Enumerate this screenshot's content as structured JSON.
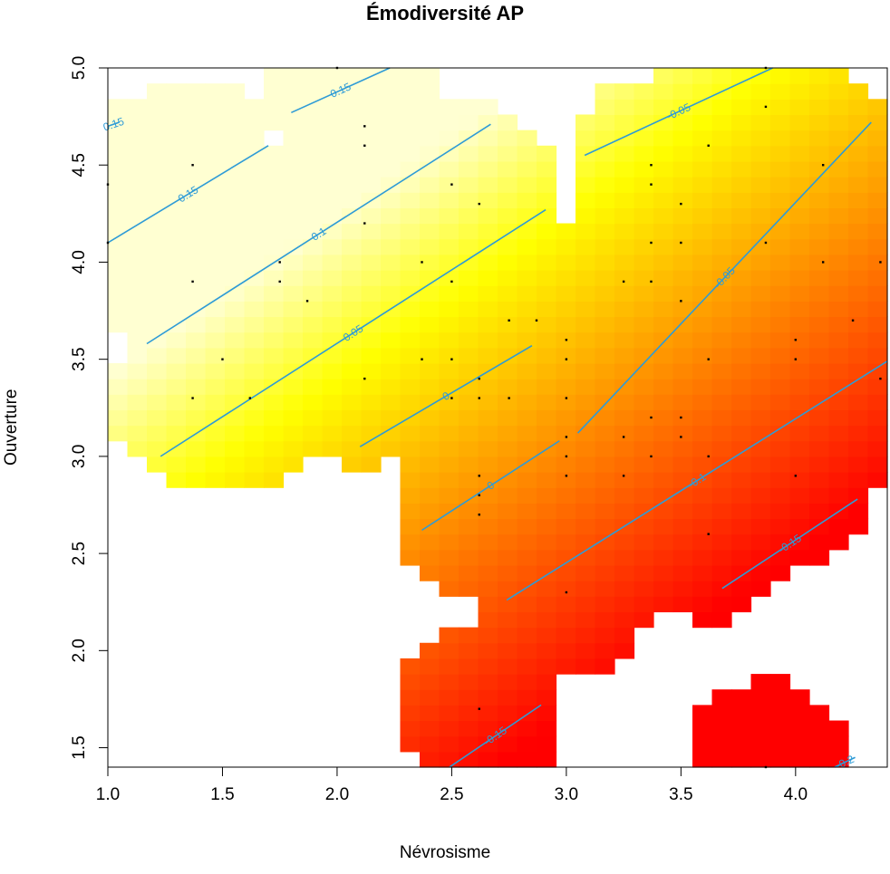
{
  "chart_data": {
    "type": "heatmap",
    "title": "Émodiversité AP",
    "xlabel": "Névrosisme",
    "ylabel": "Ouverture",
    "xlim": [
      1.0,
      4.4
    ],
    "ylim": [
      1.4,
      5.0
    ],
    "x_ticks": [
      "1.0",
      "1.5",
      "2.0",
      "2.5",
      "3.0",
      "3.5",
      "4.0"
    ],
    "y_ticks": [
      "1.5",
      "2.0",
      "2.5",
      "3.0",
      "3.5",
      "4.0",
      "4.5",
      "5.0"
    ],
    "color_scale": {
      "high": "#FFFFD0",
      "mid": "#FFFF00",
      "low": "#FF0000",
      "range": [
        -0.2,
        0.2
      ]
    },
    "contour_color": "#2E9BD6",
    "surface": {
      "intercept": -0.1,
      "slope_x": -0.0974,
      "slope_y": 0.1164
    },
    "contours": [
      {
        "label": "0.15",
        "value": 0.15,
        "segments": [
          [
            [
              1.0,
              4.1
            ],
            [
              1.7,
              4.6
            ]
          ],
          [
            [
              1.0,
              4.7
            ],
            [
              1.05,
              4.72
            ]
          ],
          [
            [
              1.8,
              4.77
            ],
            [
              2.23,
              5.0
            ]
          ]
        ]
      },
      {
        "label": "0.1",
        "value": 0.1,
        "segments": [
          [
            [
              1.17,
              3.58
            ],
            [
              2.67,
              4.71
            ]
          ]
        ]
      },
      {
        "label": "0.05",
        "value": 0.05,
        "segments": [
          [
            [
              1.23,
              3.0
            ],
            [
              2.91,
              4.27
            ]
          ]
        ]
      },
      {
        "label": "0",
        "value": 0.0,
        "segments": [
          [
            [
              2.1,
              3.05
            ],
            [
              2.85,
              3.57
            ]
          ]
        ]
      },
      {
        "label": "0",
        "value": 0.0,
        "segments": [
          [
            [
              2.37,
              2.62
            ],
            [
              2.97,
              3.08
            ]
          ]
        ]
      },
      {
        "label": "-0.05",
        "value": -0.05,
        "segments": [
          [
            [
              3.08,
              4.55
            ],
            [
              3.9,
              5.0
            ]
          ]
        ]
      },
      {
        "label": "-0.05",
        "value": -0.05,
        "segments": [
          [
            [
              3.05,
              3.12
            ],
            [
              4.33,
              4.72
            ]
          ]
        ]
      },
      {
        "label": "-0.1",
        "value": -0.1,
        "segments": [
          [
            [
              2.74,
              2.26
            ],
            [
              4.4,
              3.49
            ]
          ]
        ]
      },
      {
        "label": "-0.15",
        "value": -0.15,
        "segments": [
          [
            [
              3.68,
              2.32
            ],
            [
              4.27,
              2.78
            ]
          ]
        ]
      },
      {
        "label": "-0.15",
        "value": -0.15,
        "segments": [
          [
            [
              2.49,
              1.4
            ],
            [
              2.89,
              1.72
            ]
          ]
        ]
      },
      {
        "label": "-0.2",
        "value": -0.2,
        "segments": [
          [
            [
              4.17,
              1.4
            ],
            [
              4.26,
              1.45
            ]
          ]
        ]
      }
    ],
    "points": [
      [
        1.0,
        4.4
      ],
      [
        1.0,
        4.1
      ],
      [
        1.37,
        4.5
      ],
      [
        1.37,
        3.9
      ],
      [
        1.37,
        3.3
      ],
      [
        1.5,
        3.5
      ],
      [
        1.62,
        3.3
      ],
      [
        1.75,
        4.0
      ],
      [
        1.75,
        3.9
      ],
      [
        1.87,
        3.8
      ],
      [
        2.0,
        5.0
      ],
      [
        2.12,
        4.7
      ],
      [
        2.12,
        4.6
      ],
      [
        2.12,
        4.2
      ],
      [
        2.12,
        3.4
      ],
      [
        2.37,
        4.0
      ],
      [
        2.37,
        3.5
      ],
      [
        2.5,
        4.4
      ],
      [
        2.5,
        3.9
      ],
      [
        2.5,
        3.5
      ],
      [
        2.5,
        3.3
      ],
      [
        2.62,
        4.3
      ],
      [
        2.62,
        3.4
      ],
      [
        2.62,
        3.3
      ],
      [
        2.62,
        2.9
      ],
      [
        2.62,
        2.8
      ],
      [
        2.62,
        2.7
      ],
      [
        2.62,
        1.7
      ],
      [
        2.75,
        3.7
      ],
      [
        2.75,
        3.3
      ],
      [
        2.87,
        3.7
      ],
      [
        3.0,
        3.6
      ],
      [
        3.0,
        3.5
      ],
      [
        3.0,
        3.3
      ],
      [
        3.0,
        3.1
      ],
      [
        3.0,
        3.0
      ],
      [
        3.0,
        2.9
      ],
      [
        3.0,
        2.3
      ],
      [
        3.25,
        3.9
      ],
      [
        3.25,
        3.1
      ],
      [
        3.25,
        2.9
      ],
      [
        3.37,
        4.5
      ],
      [
        3.37,
        4.4
      ],
      [
        3.37,
        4.1
      ],
      [
        3.37,
        3.9
      ],
      [
        3.37,
        3.2
      ],
      [
        3.37,
        3.0
      ],
      [
        3.5,
        4.3
      ],
      [
        3.5,
        4.1
      ],
      [
        3.5,
        3.8
      ],
      [
        3.5,
        3.2
      ],
      [
        3.5,
        3.1
      ],
      [
        3.62,
        4.6
      ],
      [
        3.62,
        3.5
      ],
      [
        3.62,
        3.0
      ],
      [
        3.62,
        2.6
      ],
      [
        3.87,
        5.0
      ],
      [
        3.87,
        4.8
      ],
      [
        3.87,
        4.1
      ],
      [
        4.0,
        3.6
      ],
      [
        4.0,
        3.5
      ],
      [
        4.0,
        2.9
      ],
      [
        4.12,
        4.5
      ],
      [
        4.12,
        4.0
      ],
      [
        4.25,
        3.7
      ],
      [
        4.37,
        4.0
      ],
      [
        4.37,
        3.4
      ],
      [
        3.87,
        1.4
      ]
    ]
  }
}
